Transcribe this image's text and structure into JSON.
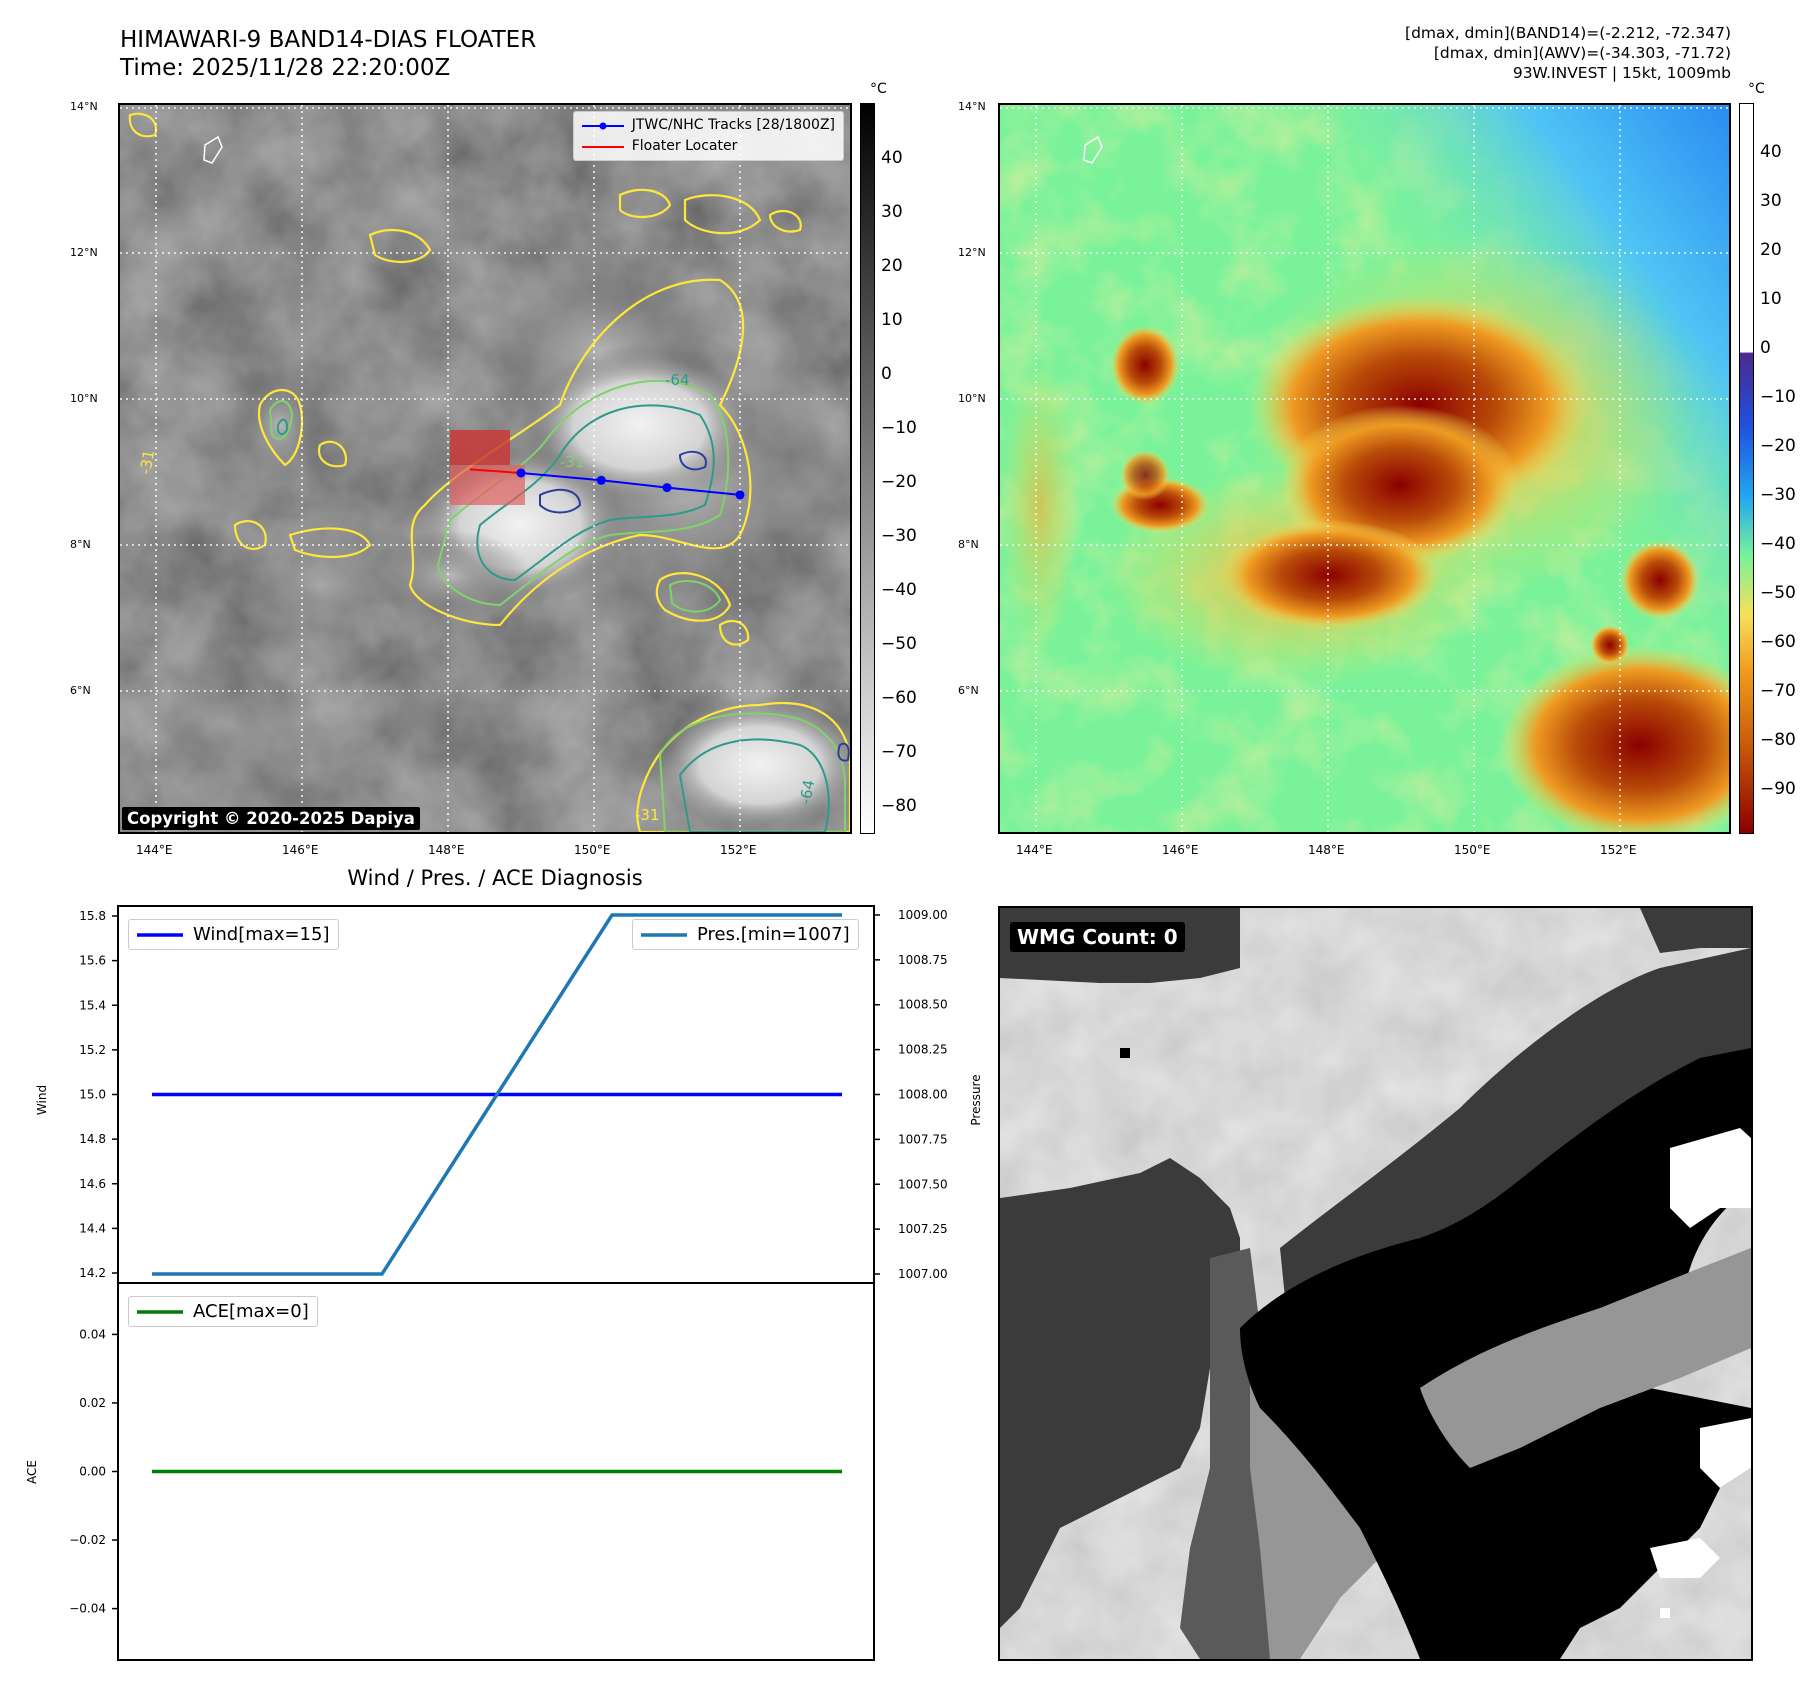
{
  "header": {
    "title_line1": "HIMAWARI-9 BAND14-DIAS FLOATER",
    "title_line2": "Time: 2025/11/28 22:20:00Z",
    "info_line1": "[dmax, dmin](BAND14)=(-2.212, -72.347)",
    "info_line2": "[dmax, dmin](AWV)=(-34.303, -71.72)",
    "info_line3": "93W.INVEST | 15kt, 1009mb"
  },
  "copyright": "Copyright © 2020-2025 Dapiya",
  "map_axes": {
    "lat_ticks": [
      "14°N",
      "12°N",
      "10°N",
      "8°N",
      "6°N"
    ],
    "lon_ticks": [
      "144°E",
      "146°E",
      "148°E",
      "150°E",
      "152°E"
    ]
  },
  "ir_colorbar": {
    "unit": "°C",
    "ticks": [
      "40",
      "30",
      "20",
      "10",
      "0",
      "−10",
      "−20",
      "−30",
      "−40",
      "−50",
      "−60",
      "−70",
      "−80"
    ],
    "colors": [
      "#000000",
      "#ffffff"
    ]
  },
  "enh_colorbar": {
    "unit": "°C",
    "ticks": [
      "40",
      "30",
      "20",
      "10",
      "0",
      "−10",
      "−20",
      "−30",
      "−40",
      "−50",
      "−60",
      "−70",
      "−80",
      "−90"
    ],
    "colors": [
      "#ffffff",
      "#4b2a8c",
      "#1f4fe0",
      "#22a8f0",
      "#78f29a",
      "#f5e15a",
      "#f09a1c",
      "#c85a0a",
      "#8b0000"
    ]
  },
  "ir_legend": {
    "track_label": "JTWC/NHC Tracks [28/1800Z]",
    "locator_label": "Floater Locater"
  },
  "contour_labels": [
    "-64",
    "-31",
    "-31",
    "-31",
    "-64"
  ],
  "track_points": [
    {
      "lon": 149.0,
      "lat": 9.0
    },
    {
      "lon": 150.1,
      "lat": 8.9
    },
    {
      "lon": 151.0,
      "lat": 8.8
    },
    {
      "lon": 152.0,
      "lat": 8.7
    }
  ],
  "chart_data": [
    {
      "type": "line",
      "title": "Wind / Pres. / ACE Diagnosis",
      "ylabel": "Wind",
      "ylabel_right": "Pressure",
      "ylim": [
        14.2,
        15.8
      ],
      "ylim_right": [
        1006.95,
        1009.05
      ],
      "x": [
        0,
        1,
        2,
        3,
        4,
        5,
        6
      ],
      "y_ticks": [
        "15.8",
        "15.6",
        "15.4",
        "15.2",
        "15.0",
        "14.8",
        "14.6",
        "14.4",
        "14.2"
      ],
      "y_ticks_right": [
        "1009.00",
        "1008.75",
        "1008.50",
        "1008.25",
        "1008.00",
        "1007.75",
        "1007.50",
        "1007.25",
        "1007.00"
      ],
      "series": [
        {
          "name": "Wind[max=15]",
          "axis": "left",
          "color": "#0000ff",
          "values": [
            15,
            15,
            15,
            15,
            15,
            15,
            15
          ]
        },
        {
          "name": "Pres.[min=1007]",
          "axis": "right",
          "color": "#1f77b4",
          "values": [
            1007,
            1007,
            1007,
            1008,
            1009,
            1009,
            1009
          ]
        }
      ],
      "legend": [
        "top-left",
        "top-right"
      ]
    },
    {
      "type": "line",
      "ylabel": "ACE",
      "ylim": [
        -0.055,
        0.055
      ],
      "x": [
        0,
        1,
        2,
        3,
        4,
        5,
        6
      ],
      "y_ticks": [
        "0.04",
        "0.02",
        "0.00",
        "−0.02",
        "−0.04"
      ],
      "series": [
        {
          "name": "ACE[max=0]",
          "color": "#008000",
          "values": [
            0,
            0,
            0,
            0,
            0,
            0,
            0
          ]
        }
      ],
      "legend": "top-left"
    }
  ],
  "wmg": {
    "label": "WMG Count: 0"
  }
}
